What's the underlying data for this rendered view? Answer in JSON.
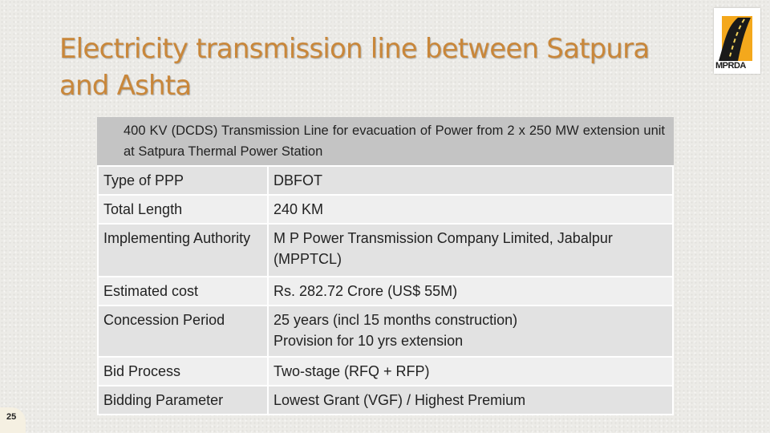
{
  "slide": {
    "title": "Electricity transmission line between Satpura and Ashta",
    "summary": "400 KV (DCDS) Transmission Line for evacuation of Power from 2 x 250 MW extension unit at Satpura Thermal Power Station",
    "page_number": "25"
  },
  "logo": {
    "text": "MPRDA"
  },
  "table": {
    "rows": [
      {
        "key": "Type of PPP",
        "value": "DBFOT",
        "lines": []
      },
      {
        "key": "Total Length",
        "value": "240 KM",
        "lines": []
      },
      {
        "key": "Implementing Authority",
        "value": "M P Power Transmission Company Limited, Jabalpur (MPPTCL)",
        "lines": []
      },
      {
        "key": "Estimated cost",
        "value": "Rs. 282.72 Crore (US$ 55M)",
        "lines": []
      },
      {
        "key": "Concession Period",
        "value": "",
        "lines": [
          "25 years (incl 15 months construction)",
          "Provision for 10 yrs extension"
        ]
      },
      {
        "key": "Bid Process",
        "value": "Two-stage (RFQ + RFP)",
        "lines": []
      },
      {
        "key": "Bidding Parameter",
        "value": "Lowest Grant (VGF) / Highest Premium",
        "lines": []
      }
    ]
  }
}
